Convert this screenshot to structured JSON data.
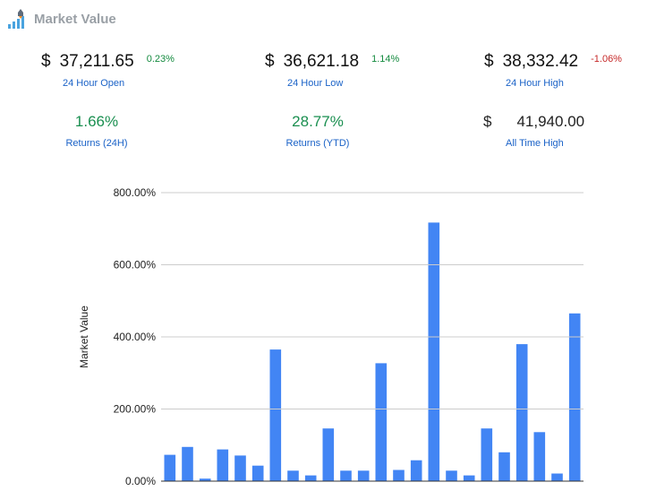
{
  "header": {
    "title": "Market Value",
    "logo_icon": "bar-chart-rocket-icon"
  },
  "stats": {
    "open": {
      "currency": "$",
      "value": "37,211.65",
      "change": "0.23%",
      "label": "24 Hour Open"
    },
    "low": {
      "currency": "$",
      "value": "36,621.18",
      "change": "1.14%",
      "label": "24 Hour Low"
    },
    "high": {
      "currency": "$",
      "value": "38,332.42",
      "change": "-1.06%",
      "label": "24 Hour High"
    },
    "returns_24h": {
      "value": "1.66%",
      "label": "Returns (24H)"
    },
    "returns_ytd": {
      "value": "28.77%",
      "label": "Returns (YTD)"
    },
    "all_time_high": {
      "currency": "$",
      "value": "41,940.00",
      "label": "All Time High"
    }
  },
  "colors": {
    "bar": "#4285f4",
    "positive": "#138a3e",
    "negative": "#c62828",
    "link": "#1a62c7"
  },
  "chart_data": {
    "type": "bar",
    "title": "",
    "xlabel": "",
    "ylabel": "Market Value",
    "ylim": [
      0,
      800
    ],
    "yticks": [
      "0.00%",
      "200.00%",
      "400.00%",
      "600.00%",
      "800.00%"
    ],
    "grid": true,
    "series": [
      {
        "values": [
          73,
          95,
          7,
          88,
          71,
          43,
          365,
          29,
          16,
          146,
          29,
          29,
          327,
          31,
          58,
          717,
          29,
          16,
          146,
          80,
          380,
          136,
          21,
          465
        ]
      }
    ]
  }
}
